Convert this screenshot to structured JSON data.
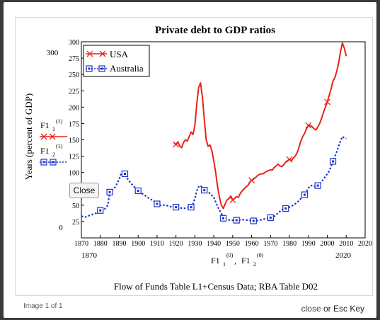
{
  "lightbox": {
    "close_button_label": "Close",
    "counter": "Image 1 of 1",
    "close_link": "close",
    "or_text": "or",
    "esc_text": "Esc Key"
  },
  "colors": {
    "usa": "#e8231b",
    "australia": "#1a33cc",
    "axis": "#000000"
  },
  "chart_data": {
    "type": "line",
    "title": "Private debt to GDP ratios",
    "ylabel": "Years (percent of GDP)",
    "xlabel_var1": "F1",
    "xlabel_sub1": "1",
    "xlabel_sup1": "(0)",
    "xlabel_sep": " ,",
    "xlabel_var2": "F1",
    "xlabel_sub2": "2",
    "xlabel_sup2": "(0)",
    "caption": "Flow of Funds Table L1+Census Data; RBA Table D02",
    "xlim": [
      1870,
      2020
    ],
    "ylim": [
      0,
      300
    ],
    "x_ticks": [
      1870,
      1880,
      1890,
      1900,
      1910,
      1920,
      1930,
      1940,
      1950,
      1960,
      1970,
      1980,
      1990,
      2000,
      2010,
      2020
    ],
    "y_ticks": [
      0,
      25,
      50,
      75,
      100,
      125,
      150,
      175,
      200,
      225,
      250,
      275,
      300
    ],
    "y_range_labels": [
      "0",
      "300"
    ],
    "x_range_labels": [
      "1870",
      "2020"
    ],
    "side_legend": [
      {
        "var": "F1",
        "sub": "1",
        "sup": "(1)"
      },
      {
        "var": "F1",
        "sub": "2",
        "sup": "(1)"
      }
    ],
    "legend_position": "top-left",
    "series": [
      {
        "name": "USA",
        "marker_years": [
          1920,
          1950,
          1960,
          1980,
          1990,
          2000
        ],
        "points": [
          [
            1919,
            145
          ],
          [
            1920,
            143
          ],
          [
            1921,
            147
          ],
          [
            1922,
            140
          ],
          [
            1923,
            138
          ],
          [
            1924,
            146
          ],
          [
            1925,
            150
          ],
          [
            1926,
            148
          ],
          [
            1927,
            155
          ],
          [
            1928,
            162
          ],
          [
            1929,
            158
          ],
          [
            1930,
            172
          ],
          [
            1931,
            205
          ],
          [
            1932,
            230
          ],
          [
            1933,
            237
          ],
          [
            1934,
            215
          ],
          [
            1935,
            180
          ],
          [
            1936,
            150
          ],
          [
            1937,
            140
          ],
          [
            1938,
            142
          ],
          [
            1939,
            133
          ],
          [
            1940,
            118
          ],
          [
            1941,
            100
          ],
          [
            1942,
            78
          ],
          [
            1943,
            62
          ],
          [
            1944,
            50
          ],
          [
            1945,
            45
          ],
          [
            1946,
            52
          ],
          [
            1947,
            58
          ],
          [
            1948,
            60
          ],
          [
            1949,
            64
          ],
          [
            1950,
            58
          ],
          [
            1951,
            60
          ],
          [
            1952,
            63
          ],
          [
            1953,
            62
          ],
          [
            1954,
            68
          ],
          [
            1955,
            72
          ],
          [
            1956,
            75
          ],
          [
            1957,
            78
          ],
          [
            1958,
            80
          ],
          [
            1959,
            85
          ],
          [
            1960,
            88
          ],
          [
            1961,
            90
          ],
          [
            1962,
            92
          ],
          [
            1963,
            95
          ],
          [
            1964,
            97
          ],
          [
            1965,
            98
          ],
          [
            1966,
            98
          ],
          [
            1967,
            100
          ],
          [
            1968,
            102
          ],
          [
            1969,
            103
          ],
          [
            1970,
            104
          ],
          [
            1971,
            104
          ],
          [
            1972,
            108
          ],
          [
            1973,
            110
          ],
          [
            1974,
            113
          ],
          [
            1975,
            110
          ],
          [
            1976,
            109
          ],
          [
            1977,
            112
          ],
          [
            1978,
            116
          ],
          [
            1979,
            118
          ],
          [
            1980,
            120
          ],
          [
            1981,
            118
          ],
          [
            1982,
            122
          ],
          [
            1983,
            125
          ],
          [
            1984,
            130
          ],
          [
            1985,
            138
          ],
          [
            1986,
            148
          ],
          [
            1987,
            155
          ],
          [
            1988,
            160
          ],
          [
            1989,
            167
          ],
          [
            1990,
            172
          ],
          [
            1991,
            172
          ],
          [
            1992,
            170
          ],
          [
            1993,
            167
          ],
          [
            1994,
            165
          ],
          [
            1995,
            170
          ],
          [
            1996,
            175
          ],
          [
            1997,
            183
          ],
          [
            1998,
            192
          ],
          [
            1999,
            200
          ],
          [
            2000,
            208
          ],
          [
            2001,
            218
          ],
          [
            2002,
            228
          ],
          [
            2003,
            240
          ],
          [
            2004,
            245
          ],
          [
            2005,
            255
          ],
          [
            2006,
            268
          ],
          [
            2007,
            285
          ],
          [
            2008,
            298
          ],
          [
            2009,
            290
          ],
          [
            2010,
            278
          ]
        ]
      },
      {
        "name": "Australia",
        "marker_years": [
          1880,
          1885,
          1893,
          1900,
          1910,
          1920,
          1928,
          1935,
          1945,
          1952,
          1961,
          1970,
          1978,
          1988,
          1995,
          2003
        ],
        "points": [
          [
            1870,
            33
          ],
          [
            1872,
            32
          ],
          [
            1874,
            34
          ],
          [
            1876,
            36
          ],
          [
            1878,
            38
          ],
          [
            1880,
            42
          ],
          [
            1882,
            43
          ],
          [
            1884,
            50
          ],
          [
            1885,
            70
          ],
          [
            1886,
            72
          ],
          [
            1888,
            78
          ],
          [
            1890,
            90
          ],
          [
            1891,
            98
          ],
          [
            1892,
            103
          ],
          [
            1893,
            98
          ],
          [
            1894,
            92
          ],
          [
            1896,
            84
          ],
          [
            1898,
            78
          ],
          [
            1900,
            72
          ],
          [
            1902,
            68
          ],
          [
            1904,
            64
          ],
          [
            1906,
            60
          ],
          [
            1908,
            57
          ],
          [
            1910,
            52
          ],
          [
            1912,
            50
          ],
          [
            1914,
            50
          ],
          [
            1916,
            49
          ],
          [
            1918,
            47
          ],
          [
            1920,
            47
          ],
          [
            1922,
            46
          ],
          [
            1924,
            45
          ],
          [
            1926,
            46
          ],
          [
            1928,
            47
          ],
          [
            1929,
            52
          ],
          [
            1930,
            60
          ],
          [
            1931,
            72
          ],
          [
            1932,
            78
          ],
          [
            1933,
            80
          ],
          [
            1934,
            76
          ],
          [
            1935,
            73
          ],
          [
            1936,
            71
          ],
          [
            1937,
            70
          ],
          [
            1938,
            68
          ],
          [
            1940,
            62
          ],
          [
            1942,
            48
          ],
          [
            1943,
            42
          ],
          [
            1944,
            38
          ],
          [
            1945,
            30
          ],
          [
            1947,
            28
          ],
          [
            1949,
            27
          ],
          [
            1952,
            27
          ],
          [
            1955,
            28
          ],
          [
            1958,
            27
          ],
          [
            1961,
            26
          ],
          [
            1964,
            27
          ],
          [
            1967,
            29
          ],
          [
            1970,
            31
          ],
          [
            1972,
            33
          ],
          [
            1974,
            38
          ],
          [
            1976,
            43
          ],
          [
            1978,
            45
          ],
          [
            1980,
            47
          ],
          [
            1982,
            50
          ],
          [
            1984,
            54
          ],
          [
            1986,
            60
          ],
          [
            1988,
            66
          ],
          [
            1990,
            76
          ],
          [
            1991,
            80
          ],
          [
            1992,
            80
          ],
          [
            1994,
            78
          ],
          [
            1995,
            80
          ],
          [
            1997,
            86
          ],
          [
            1999,
            94
          ],
          [
            2001,
            102
          ],
          [
            2003,
            117
          ],
          [
            2005,
            132
          ],
          [
            2007,
            148
          ],
          [
            2008,
            155
          ],
          [
            2009,
            153
          ],
          [
            2010,
            152
          ]
        ]
      }
    ]
  }
}
